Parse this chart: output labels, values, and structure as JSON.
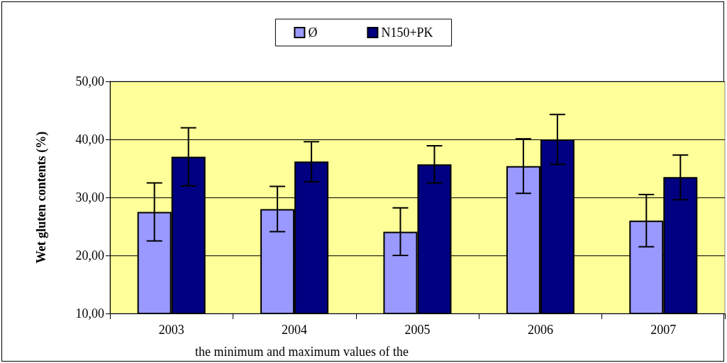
{
  "chart_data": {
    "type": "bar",
    "ylabel": "Wet gluten contents (%)",
    "categories": [
      "2003",
      "2004",
      "2005",
      "2006",
      "2007"
    ],
    "series": [
      {
        "name": "Ø",
        "color": "#9999ff",
        "values": [
          27.5,
          28,
          24.1,
          35.4,
          26
        ],
        "errors": [
          [
            22.5,
            32.5
          ],
          [
            24.1,
            31.9
          ],
          [
            20,
            28.2
          ],
          [
            30.7,
            40.1
          ],
          [
            21.5,
            30.5
          ]
        ]
      },
      {
        "name": "N150+PK",
        "color": "#000080",
        "values": [
          37,
          36.2,
          35.7,
          40,
          33.5
        ],
        "errors": [
          [
            32,
            42
          ],
          [
            32.7,
            39.6
          ],
          [
            32.5,
            38.9
          ],
          [
            35.7,
            44.3
          ],
          [
            29.6,
            37.3
          ]
        ]
      }
    ],
    "ylim": [
      10,
      50
    ],
    "yticks": [
      {
        "value": 10,
        "label": "10,00"
      },
      {
        "value": 20,
        "label": "20,00"
      },
      {
        "value": 30,
        "label": "30,00"
      },
      {
        "value": 40,
        "label": "40,00"
      },
      {
        "value": 50,
        "label": "50,00"
      }
    ],
    "grid": "y",
    "legend": "top",
    "annotations": [
      "the minimum and maximum values of the"
    ]
  }
}
